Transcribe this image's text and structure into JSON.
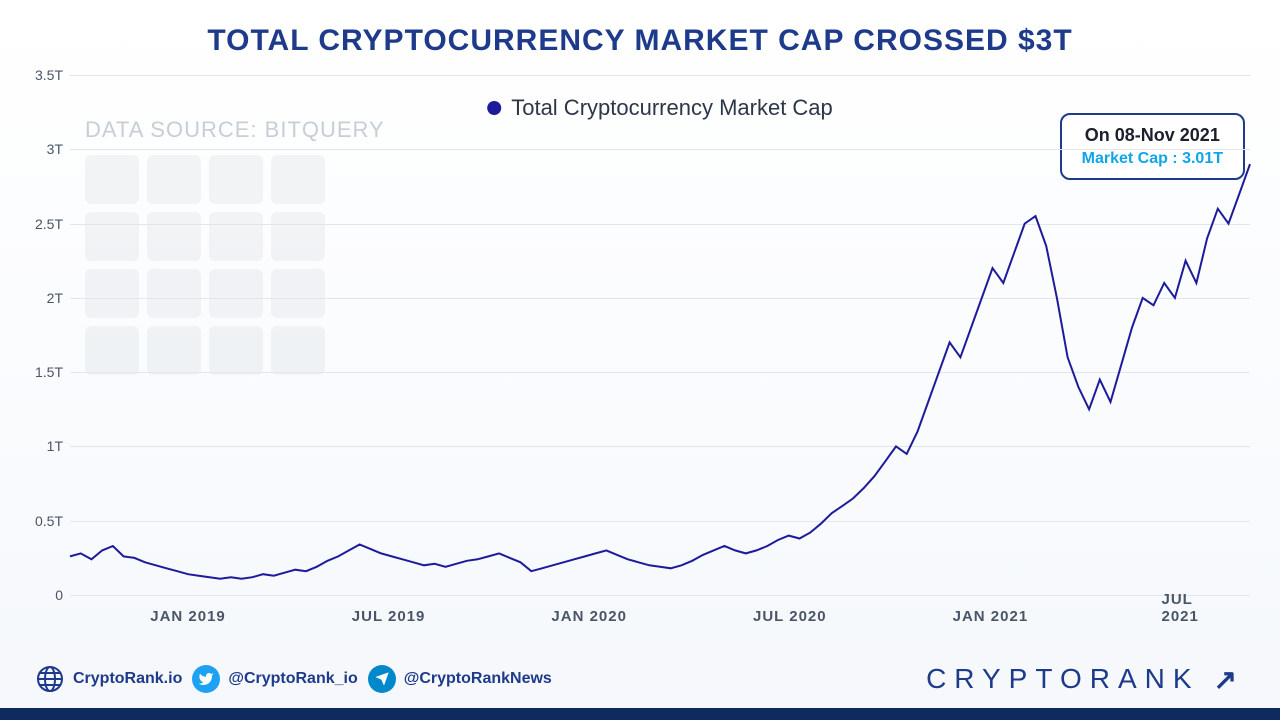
{
  "title": "TOTAL CRYPTOCURRENCY MARKET CAP CROSSED $3T",
  "title_color": "#1e3a8a",
  "data_source_label": "DATA SOURCE: BITQUERY",
  "legend": {
    "label": "Total Cryptocurrency Market Cap",
    "color": "#1e1b9b"
  },
  "callout": {
    "date_label": "On 08-Nov 2021",
    "value_label": "Market Cap : 3.01T",
    "value_color": "#0ea5e9",
    "border_color": "#1e3a8a"
  },
  "chart": {
    "type": "line",
    "line_color": "#1e1b9b",
    "line_width": 2,
    "background_gradient": [
      "#ffffff",
      "#f5f8fc"
    ],
    "grid_color": "#e2e6ec",
    "ylim": [
      0,
      3.5
    ],
    "ytick_step": 0.5,
    "y_labels": [
      "0",
      "0.5T",
      "1T",
      "1.5T",
      "2T",
      "2.5T",
      "3T",
      "3.5T"
    ],
    "x_labels": [
      "JAN 2019",
      "JUL 2019",
      "JAN 2020",
      "JUL 2020",
      "JAN 2021",
      "JUL 2021"
    ],
    "x_label_positions_pct": [
      10,
      27,
      44,
      61,
      78,
      95
    ],
    "series": [
      [
        0,
        0.26
      ],
      [
        1,
        0.28
      ],
      [
        2,
        0.24
      ],
      [
        3,
        0.3
      ],
      [
        4,
        0.33
      ],
      [
        5,
        0.26
      ],
      [
        6,
        0.25
      ],
      [
        7,
        0.22
      ],
      [
        8,
        0.2
      ],
      [
        9,
        0.18
      ],
      [
        10,
        0.16
      ],
      [
        11,
        0.14
      ],
      [
        12,
        0.13
      ],
      [
        13,
        0.12
      ],
      [
        14,
        0.11
      ],
      [
        15,
        0.12
      ],
      [
        16,
        0.11
      ],
      [
        17,
        0.12
      ],
      [
        18,
        0.14
      ],
      [
        19,
        0.13
      ],
      [
        20,
        0.15
      ],
      [
        21,
        0.17
      ],
      [
        22,
        0.16
      ],
      [
        23,
        0.19
      ],
      [
        24,
        0.23
      ],
      [
        25,
        0.26
      ],
      [
        26,
        0.3
      ],
      [
        27,
        0.34
      ],
      [
        28,
        0.31
      ],
      [
        29,
        0.28
      ],
      [
        30,
        0.26
      ],
      [
        31,
        0.24
      ],
      [
        32,
        0.22
      ],
      [
        33,
        0.2
      ],
      [
        34,
        0.21
      ],
      [
        35,
        0.19
      ],
      [
        36,
        0.21
      ],
      [
        37,
        0.23
      ],
      [
        38,
        0.24
      ],
      [
        39,
        0.26
      ],
      [
        40,
        0.28
      ],
      [
        41,
        0.25
      ],
      [
        42,
        0.22
      ],
      [
        43,
        0.16
      ],
      [
        44,
        0.18
      ],
      [
        45,
        0.2
      ],
      [
        46,
        0.22
      ],
      [
        47,
        0.24
      ],
      [
        48,
        0.26
      ],
      [
        49,
        0.28
      ],
      [
        50,
        0.3
      ],
      [
        51,
        0.27
      ],
      [
        52,
        0.24
      ],
      [
        53,
        0.22
      ],
      [
        54,
        0.2
      ],
      [
        55,
        0.19
      ],
      [
        56,
        0.18
      ],
      [
        57,
        0.2
      ],
      [
        58,
        0.23
      ],
      [
        59,
        0.27
      ],
      [
        60,
        0.3
      ],
      [
        61,
        0.33
      ],
      [
        62,
        0.3
      ],
      [
        63,
        0.28
      ],
      [
        64,
        0.3
      ],
      [
        65,
        0.33
      ],
      [
        66,
        0.37
      ],
      [
        67,
        0.4
      ],
      [
        68,
        0.38
      ],
      [
        69,
        0.42
      ],
      [
        70,
        0.48
      ],
      [
        71,
        0.55
      ],
      [
        72,
        0.6
      ],
      [
        73,
        0.65
      ],
      [
        74,
        0.72
      ],
      [
        75,
        0.8
      ],
      [
        76,
        0.9
      ],
      [
        77,
        1.0
      ],
      [
        78,
        0.95
      ],
      [
        79,
        1.1
      ],
      [
        80,
        1.3
      ],
      [
        81,
        1.5
      ],
      [
        82,
        1.7
      ],
      [
        83,
        1.6
      ],
      [
        84,
        1.8
      ],
      [
        85,
        2.0
      ],
      [
        86,
        2.2
      ],
      [
        87,
        2.1
      ],
      [
        88,
        2.3
      ],
      [
        89,
        2.5
      ],
      [
        90,
        2.55
      ],
      [
        91,
        2.35
      ],
      [
        92,
        2.0
      ],
      [
        93,
        1.6
      ],
      [
        94,
        1.4
      ],
      [
        95,
        1.25
      ],
      [
        96,
        1.45
      ],
      [
        97,
        1.3
      ],
      [
        98,
        1.55
      ],
      [
        99,
        1.8
      ],
      [
        100,
        2.0
      ],
      [
        101,
        1.95
      ],
      [
        102,
        2.1
      ],
      [
        103,
        2.0
      ],
      [
        104,
        2.25
      ],
      [
        105,
        2.1
      ],
      [
        106,
        2.4
      ],
      [
        107,
        2.6
      ],
      [
        108,
        2.5
      ],
      [
        109,
        2.7
      ],
      [
        110,
        2.9
      ]
    ]
  },
  "footer": {
    "link_color": "#1e3a8a",
    "website": "CryptoRank.io",
    "twitter": "@CryptoRank_io",
    "telegram": "@CryptoRankNews",
    "brand": "CRYPTORANK",
    "twitter_bg": "#1da1f2",
    "telegram_bg": "#0088cc",
    "bar_color": "#0f2a5c"
  }
}
